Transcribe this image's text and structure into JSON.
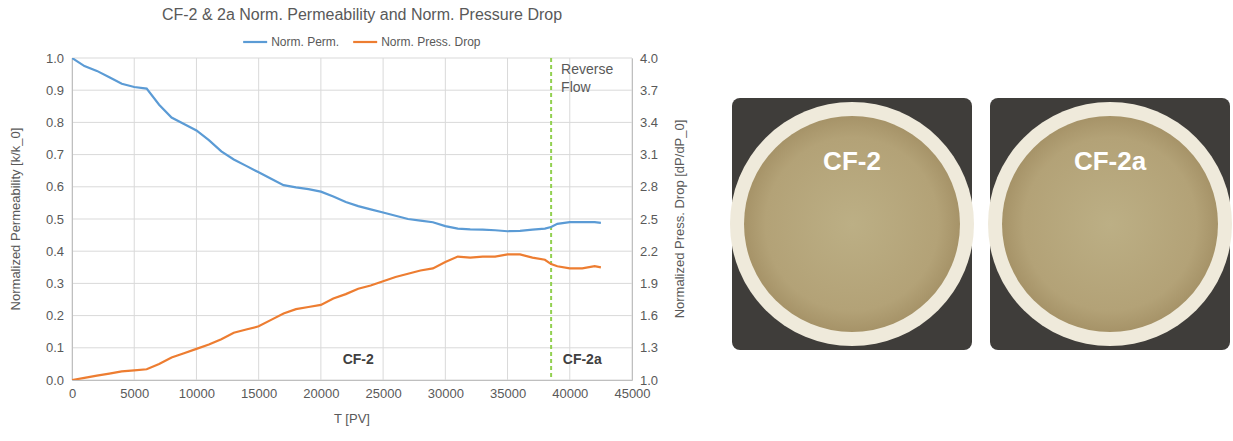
{
  "chart_data": {
    "type": "line",
    "title": "CF-2 & 2a Norm. Permeability and Norm. Pressure Drop",
    "x_label": "T [PV]",
    "y_label": "Normalized Permeability [k/k_0]",
    "y2_label": "Normalized Press. Drop [dP/dP_0]",
    "x": [
      0,
      1000,
      2000,
      3000,
      4000,
      5000,
      6000,
      7000,
      8000,
      9000,
      10000,
      11000,
      12000,
      13000,
      14000,
      15000,
      16000,
      17000,
      18000,
      19000,
      20000,
      21000,
      22000,
      23000,
      24000,
      25000,
      26000,
      27000,
      28000,
      29000,
      30000,
      31000,
      32000,
      33000,
      34000,
      35000,
      36000,
      37000,
      38000,
      38500,
      39000,
      40000,
      41000,
      42000,
      42500
    ],
    "series": [
      {
        "name": "Norm. Perm.",
        "color": "#5b9bd5",
        "values": [
          1.0,
          0.975,
          0.96,
          0.94,
          0.92,
          0.91,
          0.905,
          0.855,
          0.815,
          0.795,
          0.775,
          0.745,
          0.71,
          0.685,
          0.665,
          0.645,
          0.625,
          0.605,
          0.598,
          0.593,
          0.585,
          0.57,
          0.553,
          0.54,
          0.53,
          0.52,
          0.51,
          0.5,
          0.495,
          0.49,
          0.478,
          0.47,
          0.468,
          0.467,
          0.465,
          0.462,
          0.463,
          0.467,
          0.47,
          0.475,
          0.485,
          0.49,
          0.49,
          0.49,
          0.488
        ]
      },
      {
        "name": "Norm. Press. Drop",
        "color": "#ed7d31",
        "axis": "y2",
        "values": [
          1.0,
          1.02,
          1.04,
          1.06,
          1.08,
          1.09,
          1.1,
          1.15,
          1.21,
          1.25,
          1.29,
          1.33,
          1.38,
          1.44,
          1.47,
          1.5,
          1.56,
          1.62,
          1.66,
          1.68,
          1.7,
          1.76,
          1.8,
          1.85,
          1.88,
          1.92,
          1.96,
          1.99,
          2.02,
          2.04,
          2.1,
          2.15,
          2.14,
          2.15,
          2.15,
          2.17,
          2.17,
          2.14,
          2.12,
          2.08,
          2.06,
          2.04,
          2.04,
          2.06,
          2.05
        ]
      }
    ],
    "xlim": [
      0,
      45000
    ],
    "xticks": [
      0,
      5000,
      10000,
      15000,
      20000,
      25000,
      30000,
      35000,
      40000,
      45000
    ],
    "ylim": [
      0,
      1
    ],
    "yticks": [
      {
        "value": 0,
        "label": "0.0"
      },
      0.1,
      0.2,
      0.3,
      0.4,
      0.5,
      0.6,
      0.7,
      0.8,
      0.9,
      {
        "value": 1,
        "label": "1.0"
      }
    ],
    "y2lim": [
      1,
      4
    ],
    "y2ticks": [
      {
        "value": 1,
        "label": "1.0"
      },
      1.3,
      1.6,
      1.9,
      2.2,
      2.5,
      2.8,
      3.1,
      3.4,
      3.7,
      {
        "value": 4,
        "label": "4.0"
      }
    ],
    "grid": true,
    "legend": "top",
    "annotations": [
      {
        "text": "Reverse Flow",
        "x": 38500,
        "y": 0.95
      },
      {
        "text": "CF-2",
        "x": 23000,
        "y": 0.05
      },
      {
        "text": "CF-2a",
        "x": 41000,
        "y": 0.05
      }
    ]
  },
  "photos": [
    {
      "label": "CF-2"
    },
    {
      "label": "CF-2a"
    }
  ]
}
